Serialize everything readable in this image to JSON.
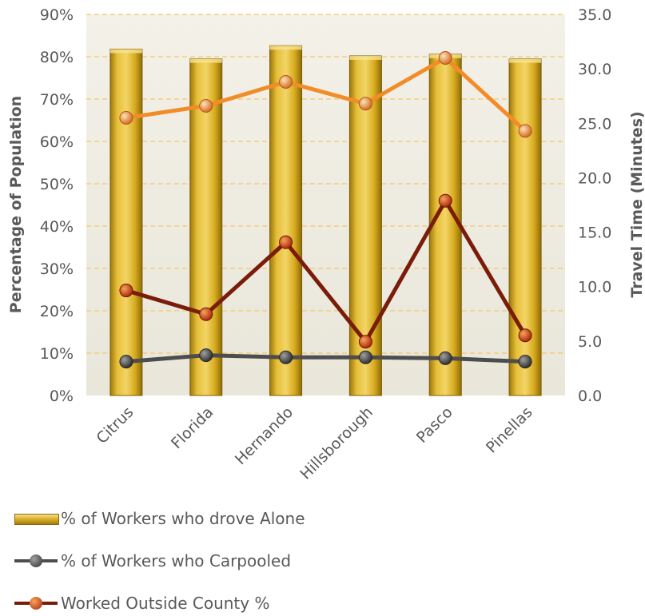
{
  "chart_data": {
    "type": "bar",
    "categories": [
      "Citrus",
      "Florida",
      "Hernando",
      "Hillsborough",
      "Pasco",
      "Pinellas"
    ],
    "ylabel": "Percentage of Population",
    "y2label": "Travel Time (Minutes)",
    "ylim": [
      0,
      90
    ],
    "y2lim": [
      0,
      35
    ],
    "yticks": [
      "0%",
      "10%",
      "20%",
      "30%",
      "40%",
      "50%",
      "60%",
      "70%",
      "80%",
      "90%"
    ],
    "y2ticks": [
      "0.0",
      "5.0",
      "10.0",
      "15.0",
      "20.0",
      "25.0",
      "30.0",
      "35.0"
    ],
    "grid": true,
    "legend_position": "bottom",
    "series": [
      {
        "name": "% of Workers who drove Alone",
        "type": "bar",
        "axis": "left",
        "values": [
          81.8,
          79.5,
          82.6,
          80.2,
          80.6,
          79.5
        ],
        "color": "#d4a820"
      },
      {
        "name": "% of Workers who Carpooled",
        "type": "line",
        "axis": "left",
        "values": [
          8.0,
          9.5,
          9.0,
          9.0,
          8.8,
          8.0
        ],
        "color": "#4d4d4d"
      },
      {
        "name": "Worked Outside County %",
        "type": "line",
        "axis": "left",
        "values": [
          24.8,
          19.2,
          36.2,
          12.7,
          46.0,
          14.2
        ],
        "color": "#7a1c0a"
      },
      {
        "type": "line",
        "axis": "right",
        "values": [
          25.5,
          26.6,
          28.8,
          26.8,
          31.0,
          24.3
        ],
        "color": "#f28c28"
      }
    ]
  },
  "legend": [
    {
      "label": "% of Workers who drove Alone",
      "icon": "bar-swatch"
    },
    {
      "label": "% of Workers who Carpooled",
      "icon": "line-marker-dark"
    },
    {
      "label": "Worked Outside County %",
      "icon": "line-marker-red"
    }
  ]
}
